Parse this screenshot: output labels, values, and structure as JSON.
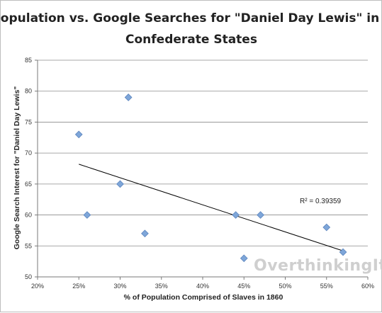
{
  "chart_data": {
    "type": "scatter",
    "title_lines": [
      "Slave Population vs. Google Searches for \"Daniel Day Lewis\" in Former",
      "Confederate States"
    ],
    "xlabel": "% of Population Comprised of Slaves in 1860",
    "ylabel": "Google Search Interest for \"Daniel Day Lewis\"",
    "xlim": [
      0.2,
      0.6
    ],
    "ylim": [
      50,
      85
    ],
    "x_ticks": [
      0.2,
      0.25,
      0.3,
      0.35,
      0.4,
      0.45,
      0.5,
      0.55,
      0.6
    ],
    "x_tick_labels": [
      "20%",
      "25%",
      "30%",
      "35%",
      "40%",
      "45%",
      "50%",
      "55%",
      "60%"
    ],
    "y_ticks": [
      50,
      55,
      60,
      65,
      70,
      75,
      80,
      85
    ],
    "y_tick_labels": [
      "50",
      "55",
      "60",
      "65",
      "70",
      "75",
      "80",
      "85"
    ],
    "grid": "horizontal",
    "marker_color": "#7ea6d9",
    "marker_stroke": "#5b84bd",
    "points": [
      {
        "x": 0.25,
        "y": 73
      },
      {
        "x": 0.26,
        "y": 60
      },
      {
        "x": 0.3,
        "y": 65
      },
      {
        "x": 0.31,
        "y": 79
      },
      {
        "x": 0.33,
        "y": 57
      },
      {
        "x": 0.44,
        "y": 60
      },
      {
        "x": 0.45,
        "y": 53
      },
      {
        "x": 0.47,
        "y": 60
      },
      {
        "x": 0.55,
        "y": 58
      },
      {
        "x": 0.57,
        "y": 54
      }
    ],
    "trendline": {
      "x": [
        0.25,
        0.57
      ],
      "y": [
        68.2,
        54.2
      ]
    },
    "annotation": "R² = 0.39359",
    "watermark": "OverthinkingIt.com"
  }
}
